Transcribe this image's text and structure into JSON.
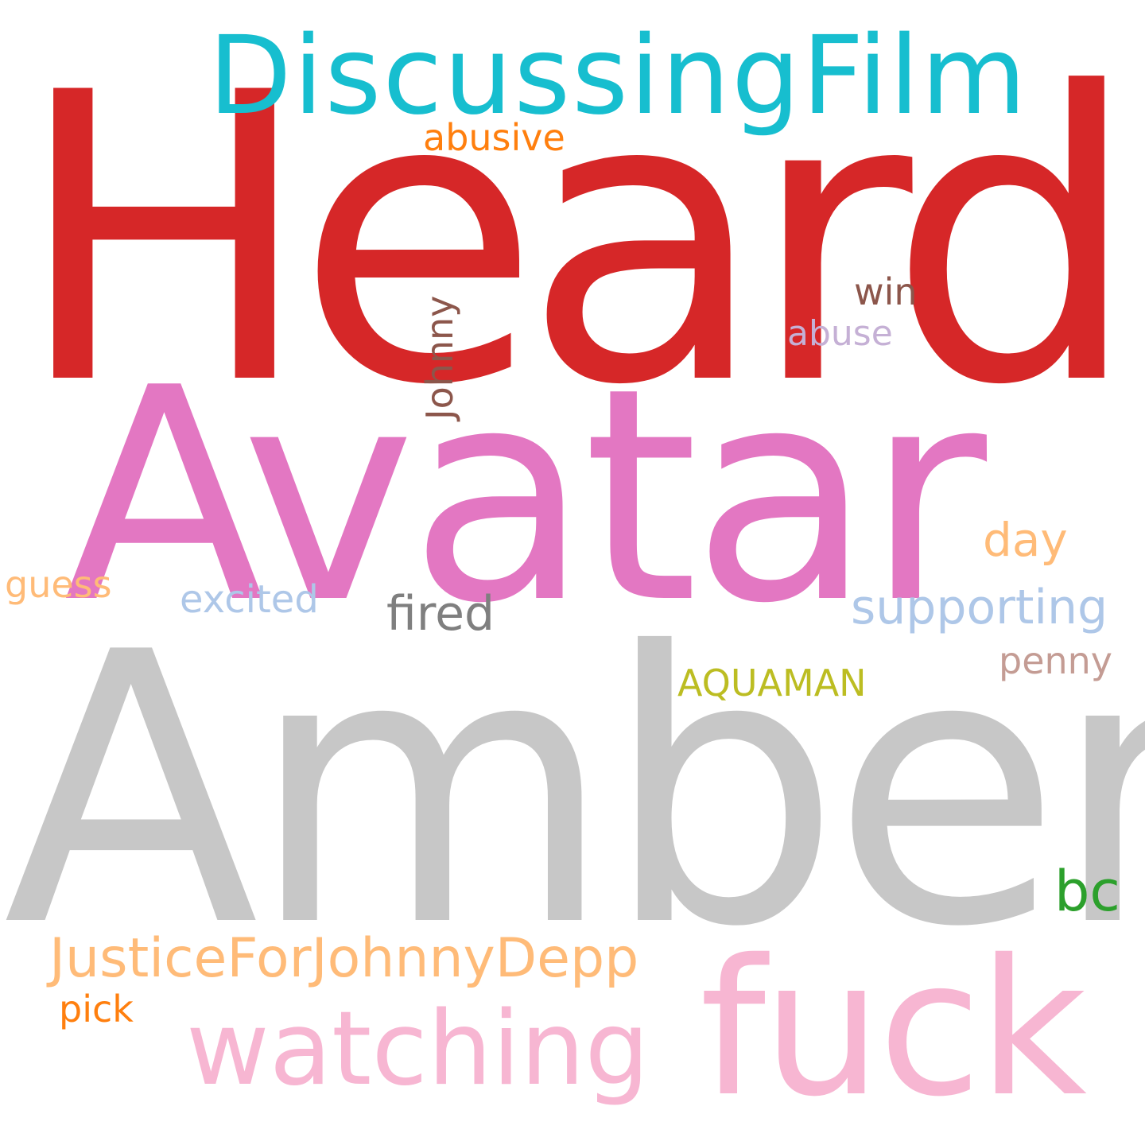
{
  "words": [
    {
      "key": "heard",
      "text": "Heard",
      "color": "#d62728"
    },
    {
      "key": "discussingfilm",
      "text": "DiscussingFilm",
      "color": "#17becf"
    },
    {
      "key": "abusive",
      "text": "abusive",
      "color": "#ff7f0e"
    },
    {
      "key": "win",
      "text": "win",
      "color": "#8c564b"
    },
    {
      "key": "abuse",
      "text": "abuse",
      "color": "#c5b0d5"
    },
    {
      "key": "johnny",
      "text": "Johnny",
      "color": "#8c564b"
    },
    {
      "key": "avatar",
      "text": "Avatar",
      "color": "#e377c2"
    },
    {
      "key": "day",
      "text": "day",
      "color": "#ffbb78"
    },
    {
      "key": "guess",
      "text": "guess",
      "color": "#ffbb78"
    },
    {
      "key": "excited",
      "text": "excited",
      "color": "#aec7e8"
    },
    {
      "key": "fired",
      "text": "fired",
      "color": "#7f7f7f"
    },
    {
      "key": "supporting",
      "text": "supporting",
      "color": "#aec7e8"
    },
    {
      "key": "penny",
      "text": "penny",
      "color": "#c49c94"
    },
    {
      "key": "aquaman",
      "text": "AQUAMAN",
      "color": "#bcbd22"
    },
    {
      "key": "amber",
      "text": "Amber",
      "color": "#c7c7c7"
    },
    {
      "key": "bc",
      "text": "bc",
      "color": "#2ca02c"
    },
    {
      "key": "justicefor",
      "text": "JusticeForJohnnyDepp",
      "color": "#ffbb78"
    },
    {
      "key": "pick",
      "text": "pick",
      "color": "#ff7f0e"
    },
    {
      "key": "watching",
      "text": "watching",
      "color": "#f7b6d2"
    },
    {
      "key": "fuck",
      "text": "fuck",
      "color": "#f7b6d2"
    }
  ]
}
